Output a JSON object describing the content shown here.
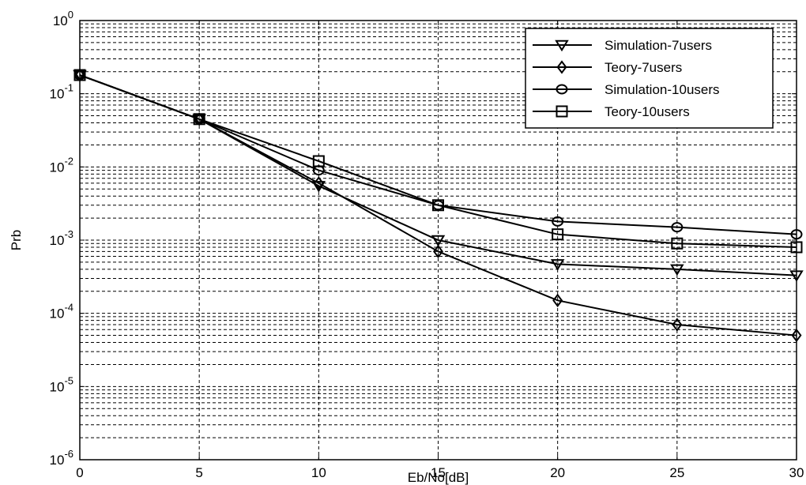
{
  "chart_data": {
    "type": "line",
    "title": "",
    "xlabel": "Eb/No[dB]",
    "ylabel": "Prb",
    "xlim": [
      0,
      30
    ],
    "ylim": [
      1e-06,
      1
    ],
    "yscale": "log",
    "grid": true,
    "legend_position": "top-right",
    "x_ticks": [
      "0",
      "5",
      "10",
      "15",
      "20",
      "25",
      "30"
    ],
    "y_ticks": [
      {
        "base": "10",
        "exp": "0"
      },
      {
        "base": "10",
        "exp": "-1"
      },
      {
        "base": "10",
        "exp": "-2"
      },
      {
        "base": "10",
        "exp": "-3"
      },
      {
        "base": "10",
        "exp": "-4"
      },
      {
        "base": "10",
        "exp": "-5"
      },
      {
        "base": "10",
        "exp": "-6"
      }
    ],
    "x": [
      0,
      5,
      10,
      15,
      20,
      25,
      30
    ],
    "series": [
      {
        "name": "Simulation-7users",
        "marker": "triangle-down",
        "values": [
          0.18,
          0.045,
          0.0055,
          0.001,
          0.00047,
          0.0004,
          0.00033
        ]
      },
      {
        "name": "Teory-7users",
        "marker": "diamond",
        "values": [
          0.18,
          0.045,
          0.006,
          0.0007,
          0.00015,
          7e-05,
          5e-05
        ]
      },
      {
        "name": "Simulation-10users",
        "marker": "circle",
        "values": [
          0.18,
          0.045,
          0.009,
          0.003,
          0.0018,
          0.0015,
          0.0012
        ]
      },
      {
        "name": "Teory-10users",
        "marker": "square",
        "values": [
          0.18,
          0.045,
          0.012,
          0.003,
          0.0012,
          0.0009,
          0.0008
        ]
      }
    ]
  }
}
